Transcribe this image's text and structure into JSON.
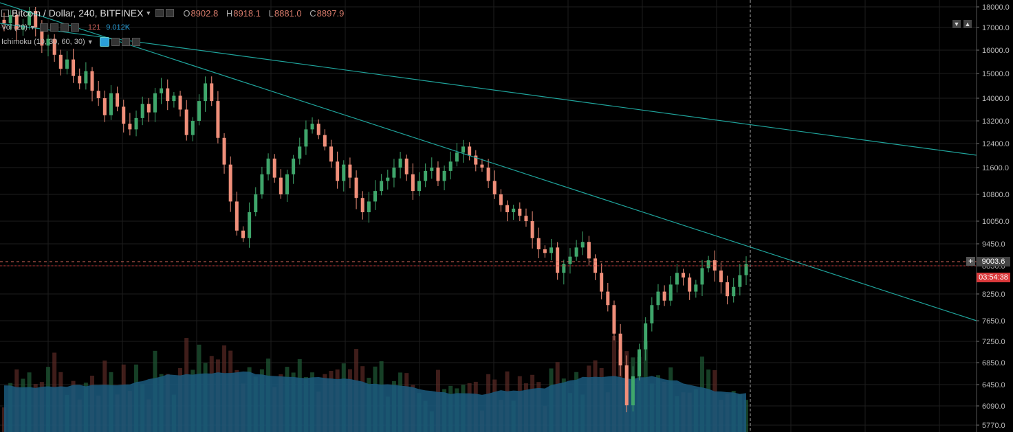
{
  "legend": {
    "symbol_title": "Bitcoin / Dollar, 240, BITFINEX",
    "ohlc": {
      "o_label": "O",
      "o": "8902.8",
      "h_label": "H",
      "h": "8918.1",
      "l_label": "L",
      "l": "8881.0",
      "c_label": "C",
      "c": "8897.9"
    },
    "volume_label": "Vol (20)",
    "volume_value_a": "121",
    "volume_value_b": "9.012K",
    "ichimoku_label": "Ichimoku (10, 30, 60, 30)"
  },
  "price_axis": {
    "ticks": [
      "18000.0",
      "17000.0",
      "16000.0",
      "15000.0",
      "14000.0",
      "13200.0",
      "12400.0",
      "11600.0",
      "10800.0",
      "10050.0",
      "9450.0",
      "8850.0",
      "8250.0",
      "7650.0",
      "7250.0",
      "6850.0",
      "6450.0",
      "6090.0",
      "5770.0"
    ],
    "current_price": "9003.6",
    "countdown": "03:54:38"
  },
  "colors": {
    "background": "#000000",
    "grid": "#1e1e1e",
    "up": "#3fa66b",
    "down": "#f08f7a",
    "trendline": "#1fa39b",
    "volume_area": "#1b5a7e",
    "price_tag": "#444444",
    "countdown_tag": "#d9383a"
  },
  "chart_data": {
    "type": "candlestick",
    "title": "Bitcoin / Dollar, 240, BITFINEX",
    "ylim": [
      5770,
      18000
    ],
    "y_scale": "log",
    "candle_shape": [
      17200,
      17600,
      16900,
      17100,
      17800,
      17000,
      16200,
      16500,
      15800,
      15200,
      15600,
      14900,
      14600,
      15100,
      14300,
      14000,
      13400,
      14200,
      13700,
      13100,
      12900,
      13300,
      13800,
      13500,
      14200,
      14400,
      13900,
      14100,
      13600,
      12700,
      13200,
      13900,
      14600,
      13900,
      12600,
      11700,
      10600,
      9800,
      9600,
      10300,
      10800,
      11400,
      11900,
      11300,
      10800,
      11400,
      11900,
      12300,
      12900,
      13100,
      12700,
      12300,
      11800,
      11200,
      11700,
      11300,
      10700,
      10300,
      10600,
      10900,
      11200,
      11300,
      11600,
      11900,
      11400,
      10900,
      11200,
      11500,
      11600,
      11200,
      11500,
      11800,
      12100,
      12300,
      12000,
      11700,
      11600,
      11200,
      10800,
      10500,
      10300,
      10400,
      10200,
      10050,
      9600,
      9300,
      9200,
      9350,
      8700,
      8900,
      9100,
      9350,
      9500,
      9050,
      8700,
      8300,
      8000,
      7400,
      6800,
      6100,
      6600,
      7100,
      7600,
      8000,
      8300,
      8100,
      8450,
      8700,
      8600,
      8300,
      8450,
      8800,
      9000,
      8750,
      8500,
      8200,
      8400,
      8650,
      8900
    ],
    "last_close": 8897.9,
    "current_price": 9003.6
  }
}
